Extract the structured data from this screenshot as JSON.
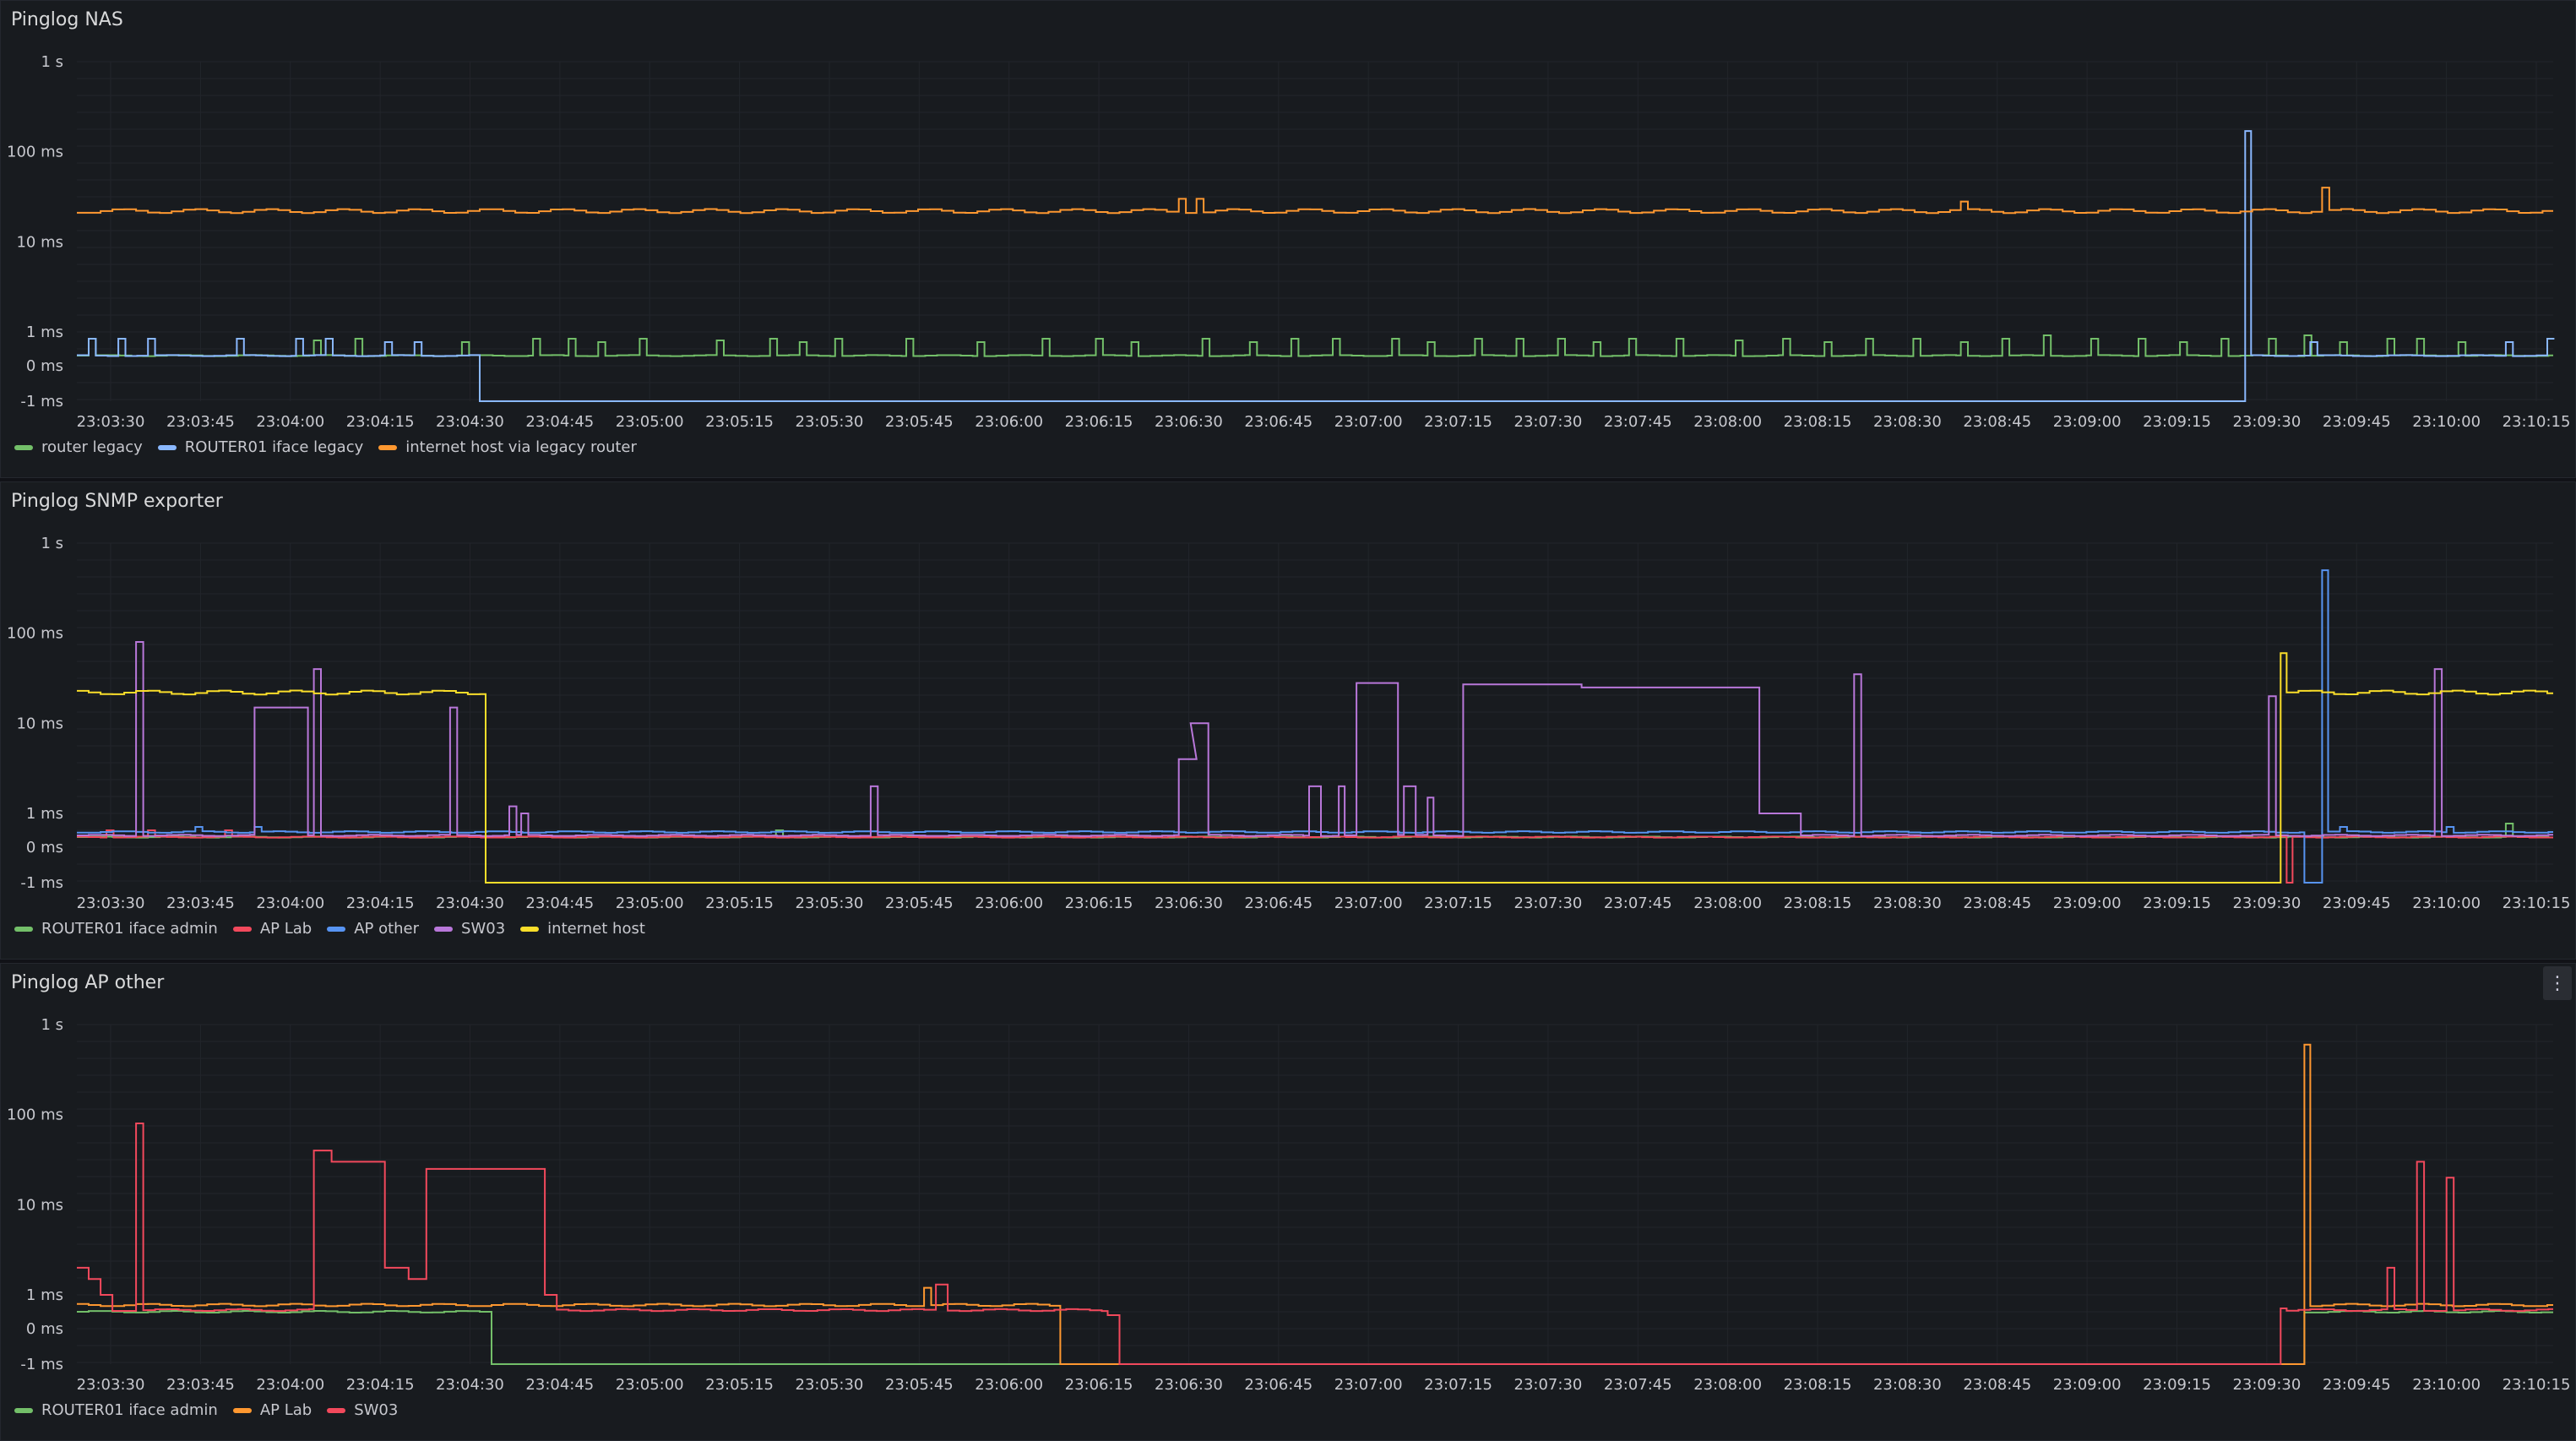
{
  "panels": [
    {
      "title": "Pinglog NAS",
      "menu_icon": "",
      "legend": [
        "router legacy",
        "ROUTER01 iface legacy",
        "internet host via legacy router"
      ]
    },
    {
      "title": "Pinglog SNMP exporter",
      "menu_icon": "",
      "legend": [
        "ROUTER01 iface admin",
        "AP Lab",
        "AP other",
        "SW03",
        "internet host"
      ]
    },
    {
      "title": "Pinglog AP other",
      "menu_icon": "⋮",
      "legend": [
        "ROUTER01 iface admin",
        "AP Lab",
        "SW03"
      ]
    }
  ],
  "chart_data": [
    {
      "type": "line",
      "title": "Pinglog NAS",
      "y_scale": "symlog",
      "yticks": [
        "1 s",
        "100 ms",
        "10 ms",
        "1 ms",
        "0 ms",
        "-1 ms"
      ],
      "ytick_values_ms": [
        1000,
        100,
        10,
        1,
        0,
        -1
      ],
      "xticks": [
        "23:03:30",
        "23:03:45",
        "23:04:00",
        "23:04:15",
        "23:04:30",
        "23:04:45",
        "23:05:00",
        "23:05:15",
        "23:05:30",
        "23:05:45",
        "23:06:00",
        "23:06:15",
        "23:06:30",
        "23:06:45",
        "23:07:00",
        "23:07:15",
        "23:07:30",
        "23:07:45",
        "23:08:00",
        "23:08:15",
        "23:08:30",
        "23:08:45",
        "23:09:00",
        "23:09:15",
        "23:09:30",
        "23:09:45",
        "23:10:00",
        "23:10:15"
      ],
      "x_unit": "seconds after 23:03:30",
      "grid": true,
      "legend_position": "bottom-left",
      "series": [
        {
          "name": "router legacy",
          "color": "#73bf69",
          "base": 0.3,
          "spikes": [
            [
              2,
              0.8
            ],
            [
              40,
              0.75
            ],
            [
              47,
              0.8
            ],
            [
              65,
              0.7
            ],
            [
              77,
              0.8
            ],
            [
              83,
              0.8
            ],
            [
              88,
              0.7
            ],
            [
              95,
              0.8
            ],
            [
              108,
              0.75
            ],
            [
              117,
              0.8
            ],
            [
              122,
              0.7
            ],
            [
              128,
              0.8
            ],
            [
              140,
              0.8
            ],
            [
              152,
              0.7
            ],
            [
              163,
              0.8
            ],
            [
              172,
              0.8
            ],
            [
              178,
              0.7
            ],
            [
              190,
              0.8
            ],
            [
              198,
              0.7
            ],
            [
              205,
              0.8
            ],
            [
              212,
              0.8
            ],
            [
              222,
              0.8
            ],
            [
              228,
              0.7
            ],
            [
              236,
              0.8
            ],
            [
              243,
              0.8
            ],
            [
              250,
              0.8
            ],
            [
              256,
              0.7
            ],
            [
              262,
              0.8
            ],
            [
              270,
              0.8
            ],
            [
              280,
              0.75
            ],
            [
              288,
              0.8
            ],
            [
              295,
              0.7
            ],
            [
              302,
              0.8
            ],
            [
              310,
              0.8
            ],
            [
              318,
              0.7
            ],
            [
              325,
              0.8
            ],
            [
              332,
              0.9
            ],
            [
              340,
              0.8
            ],
            [
              348,
              0.8
            ],
            [
              355,
              0.7
            ],
            [
              362,
              0.8
            ],
            [
              370,
              0.8
            ],
            [
              376,
              0.9
            ],
            [
              382,
              0.7
            ],
            [
              390,
              0.8
            ],
            [
              395,
              0.8
            ],
            [
              402,
              0.7
            ]
          ],
          "segments": []
        },
        {
          "name": "ROUTER01 iface legacy",
          "color": "#8ab8ff",
          "base": 0.3,
          "spikes": [
            [
              2,
              0.8
            ],
            [
              7,
              0.8
            ],
            [
              12,
              0.8
            ],
            [
              27,
              0.8
            ],
            [
              37,
              0.8
            ],
            [
              42,
              0.8
            ],
            [
              52,
              0.7
            ],
            [
              57,
              0.7
            ],
            [
              377,
              0.7
            ],
            [
              410,
              0.7
            ],
            [
              417,
              0.8
            ]
          ],
          "segments": [
            [
              68,
              366,
              -1
            ],
            [
              366,
              367,
              170
            ]
          ]
        },
        {
          "name": "internet host via legacy router",
          "color": "#ff9830",
          "base": 22,
          "spikes": [
            [
              186,
              30
            ],
            [
              189,
              30
            ],
            [
              318,
              28
            ],
            [
              379,
              40
            ]
          ],
          "segments": []
        }
      ]
    },
    {
      "type": "line",
      "title": "Pinglog SNMP exporter",
      "y_scale": "symlog",
      "yticks": [
        "1 s",
        "100 ms",
        "10 ms",
        "1 ms",
        "0 ms",
        "-1 ms"
      ],
      "ytick_values_ms": [
        1000,
        100,
        10,
        1,
        0,
        -1
      ],
      "xticks": [
        "23:03:30",
        "23:03:45",
        "23:04:00",
        "23:04:15",
        "23:04:30",
        "23:04:45",
        "23:05:00",
        "23:05:15",
        "23:05:30",
        "23:05:45",
        "23:06:00",
        "23:06:15",
        "23:06:30",
        "23:06:45",
        "23:07:00",
        "23:07:15",
        "23:07:30",
        "23:07:45",
        "23:08:00",
        "23:08:15",
        "23:08:30",
        "23:08:45",
        "23:09:00",
        "23:09:15",
        "23:09:30",
        "23:09:45",
        "23:10:00",
        "23:10:15"
      ],
      "x_unit": "seconds after 23:03:30",
      "grid": true,
      "legend_position": "bottom-left",
      "series": [
        {
          "name": "ROUTER01 iface admin",
          "color": "#73bf69",
          "base": 0.3,
          "spikes": [
            [
              118,
              0.5
            ],
            [
              410,
              0.7
            ]
          ],
          "segments": []
        },
        {
          "name": "AP Lab",
          "color": "#f2495c",
          "base": 0.3,
          "spikes": [
            [
              5,
              0.5
            ],
            [
              12,
              0.5
            ],
            [
              25,
              0.5
            ]
          ],
          "segments": [
            [
              373,
              374,
              -1
            ]
          ]
        },
        {
          "name": "AP other",
          "color": "#5794f2",
          "base": 0.45,
          "spikes": [
            [
              20,
              0.6
            ],
            [
              30,
              0.6
            ],
            [
              382,
              0.6
            ],
            [
              400,
              0.6
            ]
          ],
          "segments": [
            [
              376,
              379,
              -1
            ],
            [
              379,
              380,
              500
            ]
          ]
        },
        {
          "name": "SW03",
          "color": "#b877d9",
          "base": 0.35,
          "spikes": [
            [
              10,
              80
            ],
            [
              40,
              40
            ],
            [
              63,
              15
            ],
            [
              73,
              1.2
            ],
            [
              75,
              1.0
            ],
            [
              134,
              2.0
            ],
            [
              300,
              35
            ],
            [
              370,
              20
            ],
            [
              398,
              40
            ]
          ],
          "segments": [
            [
              30,
              39,
              15
            ],
            [
              186,
              189,
              4
            ],
            [
              188,
              191,
              10
            ],
            [
              208,
              210,
              2
            ],
            [
              213,
              214,
              2
            ],
            [
              216,
              223,
              28
            ],
            [
              224,
              226,
              2
            ],
            [
              228,
              229,
              1.5
            ],
            [
              234,
              254,
              27
            ],
            [
              254,
              284,
              25
            ],
            [
              284,
              291,
              1
            ]
          ]
        },
        {
          "name": "internet host",
          "color": "#fade2a",
          "base": 22,
          "spikes": [],
          "segments": [
            [
              69,
              372,
              -1
            ],
            [
              372,
              373,
              60
            ]
          ]
        }
      ]
    },
    {
      "type": "line",
      "title": "Pinglog AP other",
      "y_scale": "symlog",
      "yticks": [
        "1 s",
        "100 ms",
        "10 ms",
        "1 ms",
        "0 ms",
        "-1 ms"
      ],
      "ytick_values_ms": [
        1000,
        100,
        10,
        1,
        0,
        -1
      ],
      "xticks": [
        "23:03:30",
        "23:03:45",
        "23:04:00",
        "23:04:15",
        "23:04:30",
        "23:04:45",
        "23:05:00",
        "23:05:15",
        "23:05:30",
        "23:05:45",
        "23:06:00",
        "23:06:15",
        "23:06:30",
        "23:06:45",
        "23:07:00",
        "23:07:15",
        "23:07:30",
        "23:07:45",
        "23:08:00",
        "23:08:15",
        "23:08:30",
        "23:08:45",
        "23:09:00",
        "23:09:15",
        "23:09:30",
        "23:09:45",
        "23:10:00",
        "23:10:15"
      ],
      "x_unit": "seconds after 23:03:30",
      "grid": true,
      "legend_position": "bottom-left",
      "series": [
        {
          "name": "ROUTER01 iface admin",
          "color": "#73bf69",
          "base": 0.5,
          "spikes": [],
          "segments": [
            [
              70,
              376,
              -1
            ]
          ]
        },
        {
          "name": "AP Lab",
          "color": "#ff9830",
          "base": 0.7,
          "spikes": [
            [
              143,
              1.2
            ]
          ],
          "segments": [
            [
              166,
              376,
              -1
            ],
            [
              376,
              377,
              600
            ]
          ]
        },
        {
          "name": "SW03",
          "color": "#f2495c",
          "base": 0.55,
          "spikes": [
            [
              10,
              80
            ],
            [
              390,
              2
            ],
            [
              395,
              30
            ],
            [
              400,
              20
            ]
          ],
          "segments": [
            [
              0,
              2,
              2
            ],
            [
              2,
              4,
              1.5
            ],
            [
              4,
              6,
              1.0
            ],
            [
              40,
              43,
              40
            ],
            [
              43,
              52,
              30
            ],
            [
              52,
              56,
              2
            ],
            [
              56,
              59,
              1.5
            ],
            [
              59,
              79,
              25
            ],
            [
              79,
              81,
              1
            ],
            [
              145,
              147,
              1.3
            ],
            [
              174,
              176,
              0.4
            ],
            [
              176,
              215,
              -1
            ],
            [
              215,
              234,
              -1
            ],
            [
              234,
              372,
              -1
            ],
            [
              372,
              373,
              0.6
            ]
          ]
        }
      ]
    }
  ]
}
